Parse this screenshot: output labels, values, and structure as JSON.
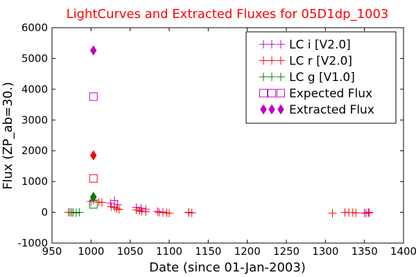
{
  "chart_data": {
    "type": "scatter",
    "title": "LightCurves and Extracted Fluxes for 05D1dp_1003",
    "xlabel": "Date (since 01-Jan-2003)",
    "ylabel": "Flux (ZP_ab=30.)",
    "xlim": [
      950,
      1400
    ],
    "ylim": [
      -1000,
      6000
    ],
    "xticks": [
      "950",
      "1000",
      "1050",
      "1100",
      "1150",
      "1200",
      "1250",
      "1300",
      "1350",
      "1400"
    ],
    "yticks": [
      "-1000",
      "0",
      "1000",
      "2000",
      "3000",
      "4000",
      "5000",
      "6000"
    ],
    "grid": false,
    "legend_position": "top-right",
    "series": [
      {
        "name": "LC i [V2.0]",
        "marker": "plus",
        "color": "#bf00bf",
        "points": [
          [
            1000,
            350
          ],
          [
            1025,
            300
          ],
          [
            1030,
            380
          ],
          [
            1034,
            250
          ],
          [
            1058,
            160
          ],
          [
            1064,
            130
          ],
          [
            1070,
            100
          ],
          [
            1085,
            30
          ],
          [
            1092,
            10
          ],
          [
            1125,
            0
          ],
          [
            1350,
            -20
          ],
          [
            1355,
            0
          ]
        ]
      },
      {
        "name": "LC r [V2.0]",
        "marker": "plus",
        "color": "#ff0000",
        "points": [
          [
            971,
            0
          ],
          [
            975,
            0
          ],
          [
            1003,
            400
          ],
          [
            1010,
            330
          ],
          [
            1014,
            320
          ],
          [
            1026,
            180
          ],
          [
            1030,
            160
          ],
          [
            1033,
            120
          ],
          [
            1036,
            90
          ],
          [
            1058,
            80
          ],
          [
            1062,
            50
          ],
          [
            1065,
            30
          ],
          [
            1070,
            20
          ],
          [
            1087,
            0
          ],
          [
            1092,
            -10
          ],
          [
            1097,
            -20
          ],
          [
            1100,
            -30
          ],
          [
            1125,
            -10
          ],
          [
            1129,
            -20
          ],
          [
            1309,
            -30
          ],
          [
            1325,
            0
          ],
          [
            1330,
            -10
          ],
          [
            1335,
            -10
          ],
          [
            1339,
            -20
          ],
          [
            1352,
            -30
          ],
          [
            1356,
            -20
          ]
        ]
      },
      {
        "name": "LC g [V1.0]",
        "marker": "plus",
        "color": "#007f00",
        "points": [
          [
            973,
            0
          ],
          [
            977,
            -10
          ],
          [
            981,
            -20
          ],
          [
            985,
            0
          ]
        ]
      },
      {
        "name": "Expected Flux",
        "marker": "square",
        "points": [
          {
            "x": 1003,
            "y": 3760,
            "color": "#bf00bf"
          },
          {
            "x": 1003,
            "y": 1100,
            "color": "#ff0000"
          },
          {
            "x": 1003,
            "y": 260,
            "color": "#007f00"
          }
        ]
      },
      {
        "name": "Extracted Flux",
        "marker": "diamond",
        "points": [
          {
            "x": 1003,
            "y": 5260,
            "color": "#bf00bf"
          },
          {
            "x": 1003,
            "y": 1850,
            "color": "#ff0000"
          },
          {
            "x": 1003,
            "y": 500,
            "color": "#007f00"
          }
        ]
      }
    ]
  },
  "colors": {
    "title": "#ff0000",
    "lc_i": "#bf00bf",
    "lc_r": "#ff0000",
    "lc_g": "#007f00",
    "axes": "#000000"
  }
}
